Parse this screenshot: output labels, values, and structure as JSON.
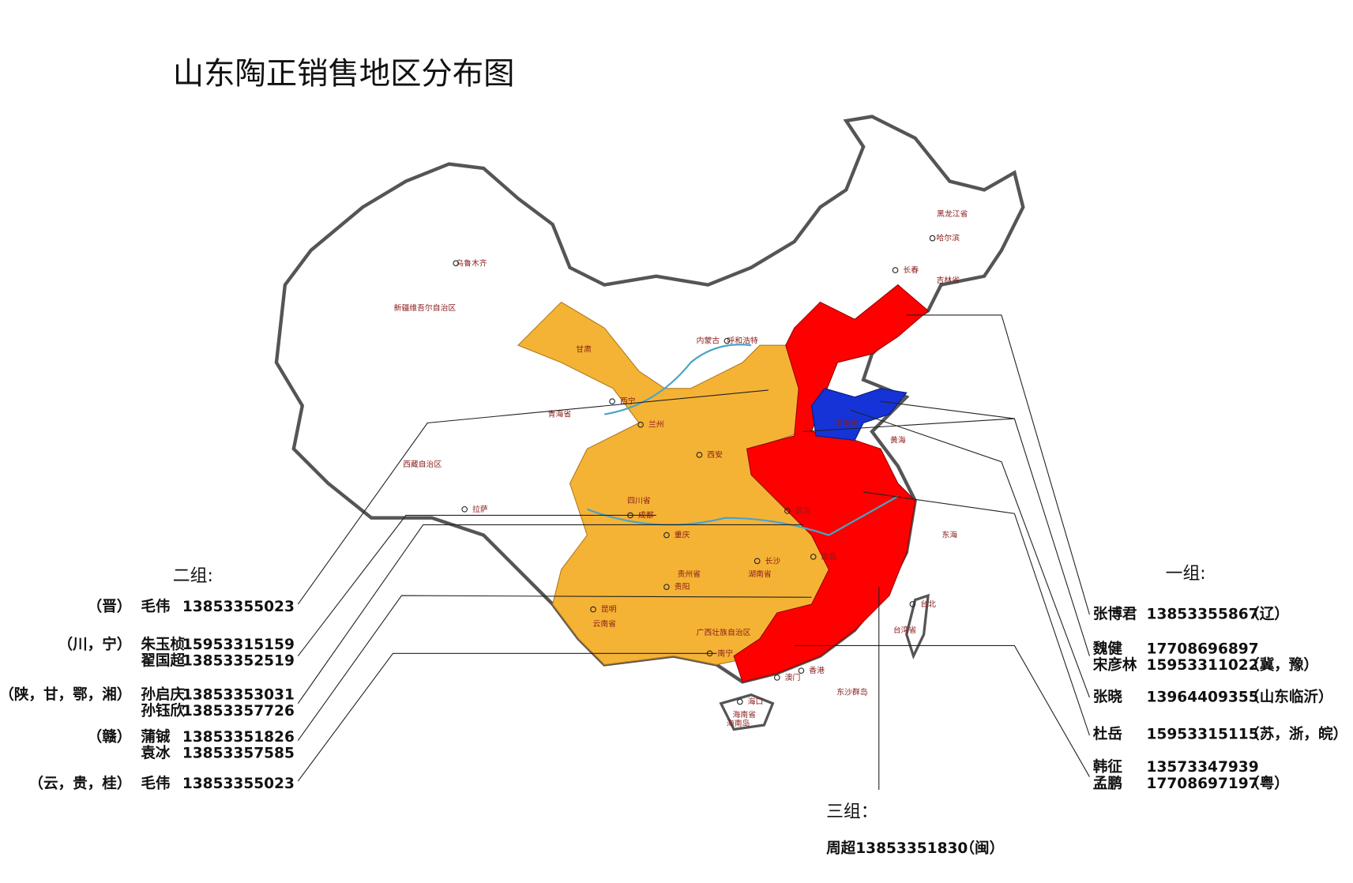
{
  "title": "山东陶正销售地区分布图",
  "groups": [
    {
      "heading": "二组:",
      "entries": [
        {
          "region": "（晋）",
          "people": [
            {
              "name": "毛伟",
              "phone": "13853355023"
            }
          ]
        },
        {
          "region": "（川，宁）",
          "people": [
            {
              "name": "朱玉桢",
              "phone": "15953315159"
            },
            {
              "name": "翟国超",
              "phone": "13853352519"
            }
          ]
        },
        {
          "region": "（陕，甘，鄂，湘）",
          "people": [
            {
              "name": "孙启庆",
              "phone": "13853353031"
            },
            {
              "name": "孙钰欣",
              "phone": "13853357726"
            }
          ]
        },
        {
          "region": "（赣）",
          "people": [
            {
              "name": "蒲铖",
              "phone": "13853351826"
            },
            {
              "name": "袁冰",
              "phone": "13853357585"
            }
          ]
        },
        {
          "region": "（云，贵，桂）",
          "people": [
            {
              "name": "毛伟",
              "phone": "13853355023"
            }
          ]
        }
      ]
    },
    {
      "heading": "一组:",
      "entries": [
        {
          "region": "（辽）",
          "people": [
            {
              "name": "张博君",
              "phone": "13853355867"
            }
          ]
        },
        {
          "region": "（冀，豫）",
          "people": [
            {
              "name": "魏健",
              "phone": "17708696897"
            },
            {
              "name": "宋彦林",
              "phone": "15953311022"
            }
          ]
        },
        {
          "region": "（山东临沂）",
          "people": [
            {
              "name": "张晓",
              "phone": "13964409355"
            }
          ]
        },
        {
          "region": "（苏，浙，皖）",
          "people": [
            {
              "name": "杜岳",
              "phone": "15953315115"
            }
          ]
        },
        {
          "region": "（粤）",
          "people": [
            {
              "name": "韩征",
              "phone": "13573347939"
            },
            {
              "name": "孟鹏",
              "phone": "17708697197"
            }
          ]
        }
      ]
    },
    {
      "heading": "三组：",
      "entries": [
        {
          "region": "（闽）",
          "people": [
            {
              "name": "周超",
              "phone": "13853351830"
            }
          ]
        }
      ]
    }
  ],
  "map_labels": [
    "乌鲁木齐",
    "新疆维吾尔自治区",
    "西藏自治区",
    "青海省",
    "甘肃",
    "内蒙古",
    "黑龙江省",
    "哈尔滨",
    "吉林省",
    "长春",
    "呼和浩特",
    "山东省",
    "四川省",
    "成都",
    "重庆",
    "贵州省",
    "贵阳",
    "云南省",
    "昆明",
    "湖南省",
    "长沙",
    "武汉",
    "南昌",
    "西安",
    "兰州",
    "西宁",
    "拉萨",
    "南宁",
    "台北",
    "台湾省",
    "海南省",
    "海口",
    "香港",
    "澳门",
    "东海",
    "黄海",
    "广西壮族自治区",
    "东沙群岛",
    "海南岛"
  ]
}
